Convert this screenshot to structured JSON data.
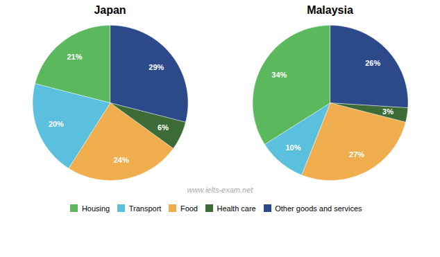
{
  "chart_data": [
    {
      "type": "pie",
      "title": "Japan",
      "categories": [
        "Housing",
        "Transport",
        "Food",
        "Health care",
        "Other goods and services"
      ],
      "values": [
        21,
        20,
        24,
        6,
        29
      ],
      "value_labels": [
        "21%",
        "20%",
        "24%",
        "6%",
        "29%"
      ],
      "colors": [
        "#5cb85c",
        "#5bc0de",
        "#f0ad4e",
        "#3d6b35",
        "#2c4a8a"
      ],
      "data_labels": true,
      "legend": "bottom",
      "annotations": [
        "www.ielts-exam.net"
      ]
    },
    {
      "type": "pie",
      "title": "Malaysia",
      "categories": [
        "Housing",
        "Transport",
        "Food",
        "Health care",
        "Other goods and services"
      ],
      "values": [
        34,
        10,
        27,
        3,
        26
      ],
      "value_labels": [
        "34%",
        "10%",
        "27%",
        "3%",
        "26%"
      ],
      "colors": [
        "#5cb85c",
        "#5bc0de",
        "#f0ad4e",
        "#3d6b35",
        "#2c4a8a"
      ],
      "data_labels": true,
      "legend": "bottom"
    }
  ]
}
